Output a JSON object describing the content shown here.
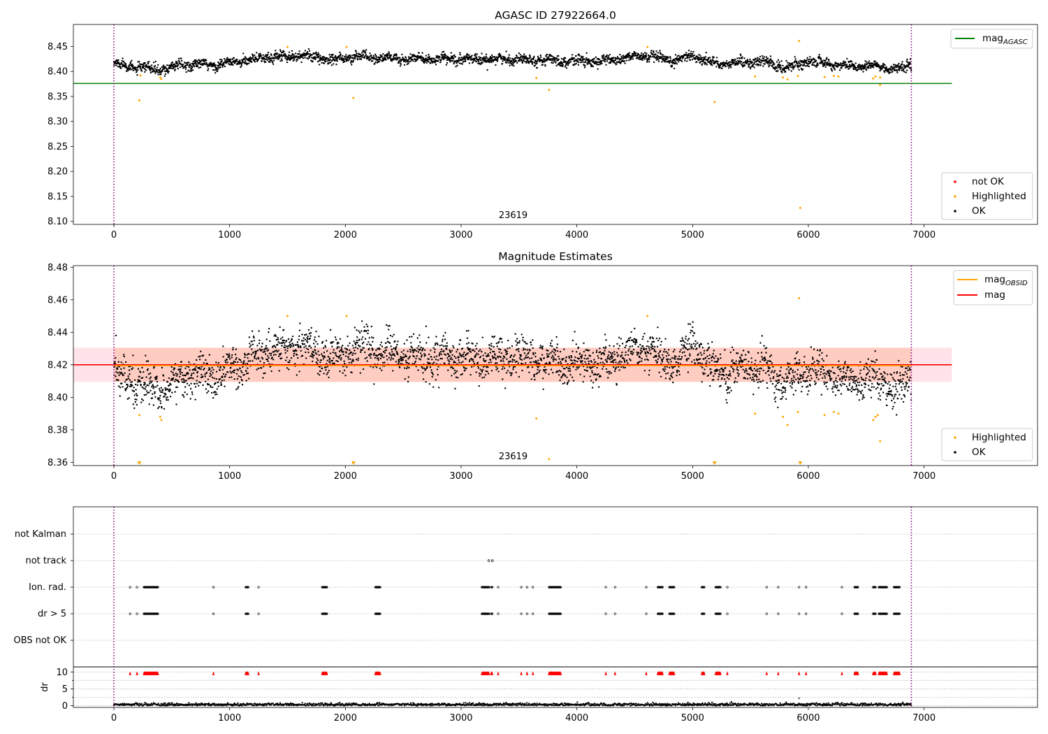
{
  "colors": {
    "ok": "#000000",
    "highlighted": "#ffa500",
    "not_ok": "#ff0000",
    "agasc_line": "#008000",
    "obsid_line": "#ffa500",
    "mag_line": "#ff0000",
    "band_fill": "#ffc0cb",
    "vline": "#800080"
  },
  "chart_data": [
    {
      "type": "scatter",
      "title": "AGASC ID 27922664.0",
      "xlim": [
        -350,
        7980
      ],
      "ylim": [
        8.094,
        8.494
      ],
      "xticks": [
        0,
        1000,
        2000,
        3000,
        4000,
        5000,
        6000,
        7000
      ],
      "yticks": [
        8.1,
        8.15,
        8.2,
        8.25,
        8.3,
        8.35,
        8.4,
        8.45
      ],
      "ytick_labels": [
        "8.10",
        "8.15",
        "8.20",
        "8.25",
        "8.30",
        "8.35",
        "8.40",
        "8.45"
      ],
      "annotation": "23619",
      "annotation_x": 3450,
      "hline": {
        "y": 8.376,
        "x0": -350,
        "x1": 7240
      },
      "vlines": [
        0,
        6890
      ],
      "series_note": "OK points follow a slowly varying baseline around 8.40-8.44 for x from 0 to 6890",
      "ok_baseline": [
        [
          0,
          8.415
        ],
        [
          200,
          8.408
        ],
        [
          400,
          8.403
        ],
        [
          600,
          8.414
        ],
        [
          900,
          8.413
        ],
        [
          1300,
          8.428
        ],
        [
          1600,
          8.432
        ],
        [
          1900,
          8.424
        ],
        [
          2100,
          8.43
        ],
        [
          2500,
          8.425
        ],
        [
          3000,
          8.424
        ],
        [
          3500,
          8.425
        ],
        [
          3800,
          8.422
        ],
        [
          4200,
          8.42
        ],
        [
          4600,
          8.432
        ],
        [
          4800,
          8.42
        ],
        [
          5000,
          8.432
        ],
        [
          5200,
          8.415
        ],
        [
          5600,
          8.42
        ],
        [
          5800,
          8.408
        ],
        [
          6000,
          8.42
        ],
        [
          6300,
          8.412
        ],
        [
          6600,
          8.41
        ],
        [
          6800,
          8.404
        ],
        [
          6890,
          8.414
        ]
      ],
      "highlighted": [
        [
          220,
          8.342
        ],
        [
          230,
          8.392
        ],
        [
          400,
          8.388
        ],
        [
          410,
          8.385
        ],
        [
          1500,
          8.449
        ],
        [
          2010,
          8.449
        ],
        [
          2070,
          8.347
        ],
        [
          3650,
          8.387
        ],
        [
          3760,
          8.363
        ],
        [
          4610,
          8.449
        ],
        [
          5190,
          8.339
        ],
        [
          5540,
          8.39
        ],
        [
          5780,
          8.388
        ],
        [
          5820,
          8.384
        ],
        [
          5910,
          8.391
        ],
        [
          5920,
          8.461
        ],
        [
          5930,
          8.127
        ],
        [
          6140,
          8.389
        ],
        [
          6220,
          8.391
        ],
        [
          6260,
          8.39
        ],
        [
          6560,
          8.386
        ],
        [
          6580,
          8.39
        ],
        [
          6620,
          8.373
        ],
        [
          6620,
          8.388
        ]
      ],
      "legend_top": [
        {
          "label": "mag",
          "sub": "AGASC"
        }
      ],
      "legend_bottom": [
        "not OK",
        "Highlighted",
        "OK"
      ]
    },
    {
      "type": "scatter",
      "title": "Magnitude Estimates",
      "xlim": [
        -350,
        7980
      ],
      "ylim": [
        8.358,
        8.481
      ],
      "xticks": [
        0,
        1000,
        2000,
        3000,
        4000,
        5000,
        6000,
        7000
      ],
      "yticks": [
        8.36,
        8.38,
        8.4,
        8.42,
        8.44,
        8.46,
        8.48
      ],
      "ytick_labels": [
        "8.36",
        "8.38",
        "8.40",
        "8.42",
        "8.44",
        "8.46",
        "8.48"
      ],
      "annotation": "23619",
      "annotation_x": 3450,
      "mag_line": {
        "y": 8.42,
        "x0": -350,
        "x1": 7240
      },
      "obsid_line": {
        "y": 8.4195,
        "x0": 0,
        "x1": 6890
      },
      "band": {
        "y0": 8.4095,
        "y1": 8.4305,
        "x0": -350,
        "x1": 7240
      },
      "vlines": [
        0,
        6890
      ],
      "highlighted": [
        [
          220,
          8.389
        ],
        [
          400,
          8.388
        ],
        [
          410,
          8.386
        ],
        [
          1500,
          8.45
        ],
        [
          2010,
          8.45
        ],
        [
          3650,
          8.387
        ],
        [
          3760,
          8.362
        ],
        [
          4610,
          8.45
        ],
        [
          5540,
          8.39
        ],
        [
          5780,
          8.388
        ],
        [
          5820,
          8.383
        ],
        [
          5910,
          8.391
        ],
        [
          5920,
          8.461
        ],
        [
          6140,
          8.389
        ],
        [
          6220,
          8.391
        ],
        [
          6260,
          8.39
        ],
        [
          6560,
          8.386
        ],
        [
          6580,
          8.388
        ],
        [
          6600,
          8.389
        ],
        [
          6620,
          8.373
        ]
      ],
      "below_range_markers": [
        220,
        2070,
        5190,
        5930
      ],
      "legend_top": [
        {
          "label": "mag",
          "sub": "OBSID"
        },
        {
          "label": "mag",
          "sub": ""
        }
      ],
      "legend_bottom": [
        "Highlighted",
        "OK"
      ]
    },
    {
      "type": "scatter",
      "title": "",
      "xlim": [
        -350,
        7980
      ],
      "xticks": [
        0,
        1000,
        2000,
        3000,
        4000,
        5000,
        6000,
        7000
      ],
      "categories": [
        "not Kalman",
        "not track",
        "Ion. rad.",
        "dr > 5",
        "OBS not OK"
      ],
      "not_track_points": [
        3240,
        3270
      ],
      "flag_clusters": [
        [
          140,
          140
        ],
        [
          200,
          200
        ],
        [
          260,
          380
        ],
        [
          860,
          860
        ],
        [
          1140,
          1160
        ],
        [
          1250,
          1250
        ],
        [
          1800,
          1840
        ],
        [
          2260,
          2300
        ],
        [
          3180,
          3240
        ],
        [
          3260,
          3270
        ],
        [
          3320,
          3320
        ],
        [
          3520,
          3520
        ],
        [
          3570,
          3570
        ],
        [
          3620,
          3620
        ],
        [
          3760,
          3860
        ],
        [
          4250,
          4250
        ],
        [
          4330,
          4330
        ],
        [
          4600,
          4600
        ],
        [
          4700,
          4740
        ],
        [
          4800,
          4840
        ],
        [
          5080,
          5100
        ],
        [
          5200,
          5240
        ],
        [
          5300,
          5300
        ],
        [
          5640,
          5640
        ],
        [
          5740,
          5740
        ],
        [
          5920,
          5920
        ],
        [
          5980,
          5980
        ],
        [
          6290,
          6290
        ],
        [
          6400,
          6430
        ],
        [
          6560,
          6580
        ],
        [
          6610,
          6680
        ],
        [
          6740,
          6790
        ]
      ],
      "dr_ylabel": "dr",
      "dr_yticks": [
        0,
        5,
        10
      ],
      "dr_ylim": [
        -0.5,
        11.5
      ]
    }
  ]
}
